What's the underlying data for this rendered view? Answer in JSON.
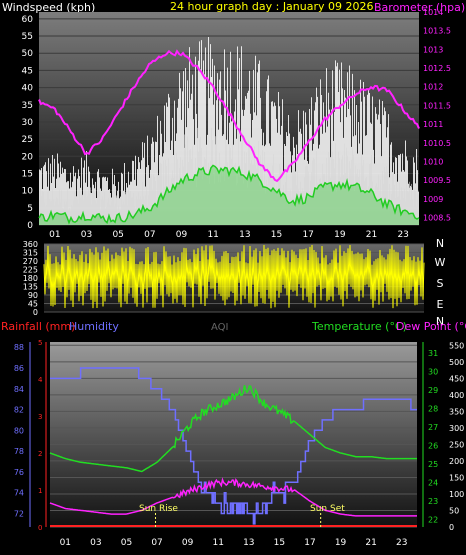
{
  "header": {
    "windspeed_label": "Windspeed (kph)",
    "title": "24 hour graph day : January 09 2026",
    "barometer_label": "Barometer (hpa)"
  },
  "wind_dir_labels": [
    "N",
    "W",
    "S",
    "E",
    "N"
  ],
  "bottom_header": {
    "rainfall_label": "Rainfall (mm)",
    "humidity_label": "Humidity",
    "aqi_label": "AQI",
    "temperature_label": "Temperature (°C)",
    "dewpoint_label": "Dew Point (°C)"
  },
  "annotations": {
    "sunrise": "Sun Rise",
    "sunset": "Sun Set"
  },
  "colors": {
    "wind": "#ffffff",
    "gust": "#ffffff",
    "wind_avg": "#22cc22",
    "barometer": "#ff22ff",
    "winddir": "#ffff00",
    "rainfall": "#ff2222",
    "humidity": "#6f6fff",
    "aqi": "#666666",
    "temperature": "#22dd22",
    "dewpoint": "#ff22ff",
    "solar": "#ffffff"
  },
  "chart_data": [
    {
      "type": "line",
      "title": "24 hour graph day : January 09 2026",
      "x_ticks": [
        "01",
        "03",
        "05",
        "07",
        "09",
        "11",
        "13",
        "15",
        "17",
        "19",
        "21",
        "23"
      ],
      "xlim": [
        0,
        24
      ],
      "y_left_label": "Windspeed (kph)",
      "y_left_ticks": [
        0,
        5,
        10,
        15,
        20,
        25,
        30,
        35,
        40,
        45,
        50,
        55,
        60
      ],
      "ylim_left": [
        0,
        62
      ],
      "y_right_label": "Barometer (hpa)",
      "y_right_ticks": [
        1008.5,
        1009,
        1009.5,
        1010,
        1010.5,
        1011,
        1011.5,
        1012,
        1012.5,
        1013,
        1013.5,
        1014
      ],
      "ylim_right": [
        1008.3,
        1014
      ],
      "series": [
        {
          "name": "Gust",
          "axis": "left",
          "x": [
            0,
            1,
            2,
            3,
            4,
            5,
            6,
            7,
            8,
            9,
            10,
            11,
            12,
            13,
            14,
            15,
            16,
            17,
            18,
            19,
            20,
            21,
            22,
            23,
            24
          ],
          "values": [
            15,
            16,
            14,
            16,
            13,
            12,
            17,
            20,
            30,
            38,
            40,
            41,
            42,
            40,
            36,
            30,
            25,
            28,
            35,
            36,
            34,
            30,
            26,
            20,
            17
          ]
        },
        {
          "name": "Windspeed",
          "axis": "left",
          "x": [
            0,
            1,
            2,
            3,
            4,
            5,
            6,
            7,
            8,
            9,
            10,
            11,
            12,
            13,
            14,
            15,
            16,
            17,
            18,
            19,
            20,
            21,
            22,
            23,
            24
          ],
          "values": [
            8,
            9,
            8,
            9,
            8,
            7,
            9,
            11,
            16,
            20,
            22,
            22,
            22,
            21,
            19,
            16,
            13,
            15,
            18,
            19,
            18,
            16,
            14,
            11,
            9
          ]
        },
        {
          "name": "Average windspeed",
          "axis": "left",
          "x": [
            0,
            1,
            2,
            3,
            4,
            5,
            6,
            7,
            8,
            9,
            10,
            11,
            12,
            13,
            14,
            15,
            16,
            17,
            18,
            19,
            20,
            21,
            22,
            23,
            24
          ],
          "values": [
            2,
            3,
            2,
            3,
            2,
            2,
            3,
            5,
            9,
            13,
            15,
            16,
            16,
            15,
            13,
            10,
            7,
            8,
            11,
            12,
            11,
            9,
            6,
            4,
            3
          ]
        },
        {
          "name": "Barometer",
          "axis": "right",
          "x": [
            0,
            1,
            2,
            3,
            4,
            5,
            6,
            7,
            8,
            9,
            10,
            11,
            12,
            13,
            14,
            15,
            16,
            17,
            18,
            19,
            20,
            21,
            22,
            23,
            24
          ],
          "values": [
            1011.6,
            1011.4,
            1010.8,
            1010.2,
            1010.6,
            1011.3,
            1012.0,
            1012.6,
            1012.9,
            1012.9,
            1012.5,
            1012.0,
            1011.3,
            1010.6,
            1009.9,
            1009.5,
            1009.9,
            1010.5,
            1011.1,
            1011.5,
            1011.8,
            1012.0,
            1011.9,
            1011.4,
            1010.9
          ]
        }
      ]
    },
    {
      "type": "line",
      "x_ticks": [
        "01",
        "03",
        "05",
        "07",
        "09",
        "11",
        "13",
        "15",
        "17",
        "19",
        "21",
        "23"
      ],
      "xlim": [
        0,
        24
      ],
      "y_ticks": [
        0,
        45,
        90,
        135,
        180,
        225,
        270,
        315,
        360
      ],
      "ylim": [
        0,
        360
      ],
      "series": [
        {
          "name": "Wind direction",
          "pattern": "oscillating between about 20 and 350 degrees throughout the day",
          "x": [
            0,
            3,
            6,
            9,
            12,
            15,
            18,
            21,
            24
          ],
          "values": [
            200,
            180,
            220,
            170,
            190,
            210,
            180,
            200,
            190
          ]
        }
      ]
    },
    {
      "type": "line",
      "x_ticks": [
        "01",
        "03",
        "05",
        "07",
        "09",
        "11",
        "13",
        "15",
        "17",
        "19",
        "21",
        "23"
      ],
      "xlim": [
        0,
        24
      ],
      "y_rain_ticks": [
        0,
        1,
        2,
        3,
        4,
        5
      ],
      "y_humidity_ticks": [
        72,
        74,
        76,
        78,
        80,
        82,
        84,
        86,
        88
      ],
      "ylim_humidity": [
        70.7,
        88.5
      ],
      "y_temperature_ticks": [
        22,
        23,
        24,
        25,
        26,
        27,
        28,
        29,
        30,
        31
      ],
      "ylim_temperature": [
        21.6,
        31.6
      ],
      "y_solar_ticks": [
        0,
        50,
        100,
        150,
        200,
        250,
        300,
        350,
        400,
        450,
        500,
        550
      ],
      "ylim_solar": [
        0,
        560
      ],
      "series": [
        {
          "name": "Humidity",
          "axis": "humidity",
          "x": [
            0,
            2,
            3,
            4,
            5.5,
            6,
            7,
            8,
            9,
            9.5,
            10,
            11,
            12,
            13,
            14,
            15,
            16,
            16.5,
            17,
            18,
            19,
            20,
            21,
            22,
            23,
            24
          ],
          "values": [
            85,
            85.5,
            86,
            86,
            86,
            85,
            84,
            82,
            78,
            76,
            74,
            73,
            72,
            72,
            73,
            74,
            75,
            77,
            79,
            81,
            82,
            82,
            83,
            83,
            83,
            82
          ]
        },
        {
          "name": "Temperature",
          "axis": "temperature",
          "x": [
            0,
            1,
            2,
            3,
            4,
            5,
            6,
            7,
            8,
            9,
            10,
            11,
            12,
            13,
            14,
            15,
            16,
            17,
            18,
            19,
            20,
            21,
            22,
            23,
            24
          ],
          "values": [
            25.6,
            25.3,
            25.1,
            25.0,
            24.9,
            24.8,
            24.6,
            25.1,
            25.9,
            27.0,
            27.8,
            28.2,
            28.6,
            29.2,
            28.3,
            27.8,
            27.3,
            26.6,
            25.9,
            25.6,
            25.4,
            25.4,
            25.3,
            25.3,
            25.3
          ]
        },
        {
          "name": "Dew Point",
          "axis": "temperature",
          "x": [
            0,
            1,
            2,
            3,
            4,
            5,
            6,
            7,
            8,
            9,
            10,
            11,
            12,
            13,
            14,
            15,
            16,
            17,
            18,
            19,
            20,
            21,
            22,
            23,
            24
          ],
          "values": [
            22.9,
            22.6,
            22.5,
            22.4,
            22.3,
            22.3,
            22.5,
            22.9,
            23.2,
            23.5,
            23.8,
            24.0,
            24.0,
            23.9,
            23.8,
            23.7,
            23.6,
            23.0,
            22.5,
            22.3,
            22.2,
            22.2,
            22.2,
            22.2,
            22.2
          ]
        },
        {
          "name": "Rainfall",
          "axis": "rain",
          "x": [
            0,
            24
          ],
          "values": [
            0,
            0
          ]
        }
      ],
      "events": {
        "sunrise": 6.9,
        "sunset": 17.7
      }
    }
  ]
}
